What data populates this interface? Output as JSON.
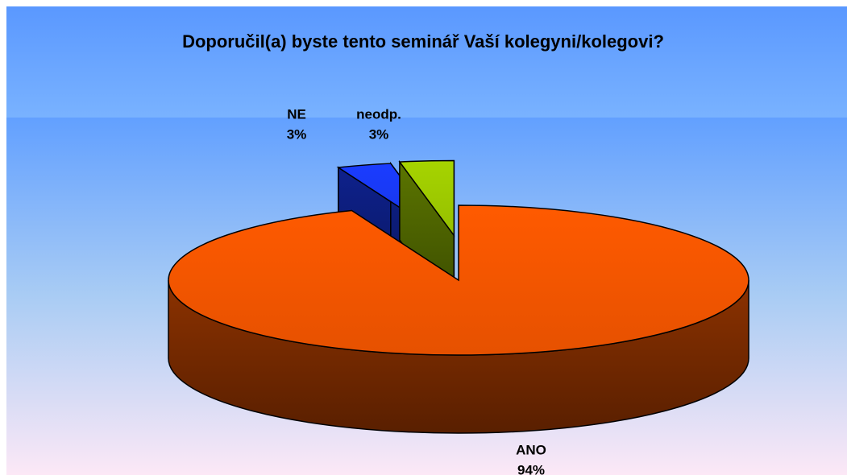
{
  "chart_data": {
    "type": "pie",
    "title": "Doporučil(a) byste tento seminář Vaší kolegyni/kolegovi?",
    "categories": [
      "ANO",
      "NE",
      "neodp."
    ],
    "values": [
      94,
      3,
      3
    ],
    "value_labels": [
      "94%",
      "3%",
      "3%"
    ],
    "colors": [
      "#ff5a00",
      "#1a3cff",
      "#a6d400"
    ]
  }
}
